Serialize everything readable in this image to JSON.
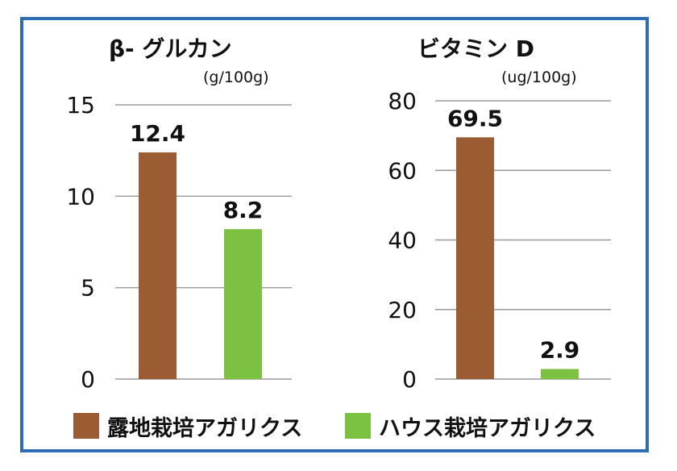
{
  "colors": {
    "frame": "#2f6db3",
    "open_field": "#9b5c34",
    "greenhouse": "#7cc142"
  },
  "legend": [
    {
      "label": "露地栽培アガリクス",
      "color": "#9b5c34"
    },
    {
      "label": "ハウス栽培アガリクス",
      "color": "#7cc142"
    }
  ],
  "chart_data": [
    {
      "type": "bar",
      "title": "β- グルカン",
      "unit": "(g/100g)",
      "categories": [
        "露地栽培アガリクス",
        "ハウス栽培アガリクス"
      ],
      "values": [
        12.4,
        8.2
      ],
      "value_labels": [
        "12.4",
        "8.2"
      ],
      "ylim": [
        0,
        15
      ],
      "yticks": [
        0,
        5,
        10,
        15
      ],
      "ytick_labels": [
        "0",
        "5",
        "10",
        "15"
      ],
      "grid": true
    },
    {
      "type": "bar",
      "title": "ビタミン D",
      "unit": "(ug/100g)",
      "categories": [
        "露地栽培アガリクス",
        "ハウス栽培アガリクス"
      ],
      "values": [
        69.5,
        2.9
      ],
      "value_labels": [
        "69.5",
        "2.9"
      ],
      "ylim": [
        0,
        80
      ],
      "yticks": [
        0,
        20,
        40,
        60,
        80
      ],
      "ytick_labels": [
        "0",
        "20",
        "40",
        "60",
        "80"
      ],
      "grid": true
    }
  ]
}
